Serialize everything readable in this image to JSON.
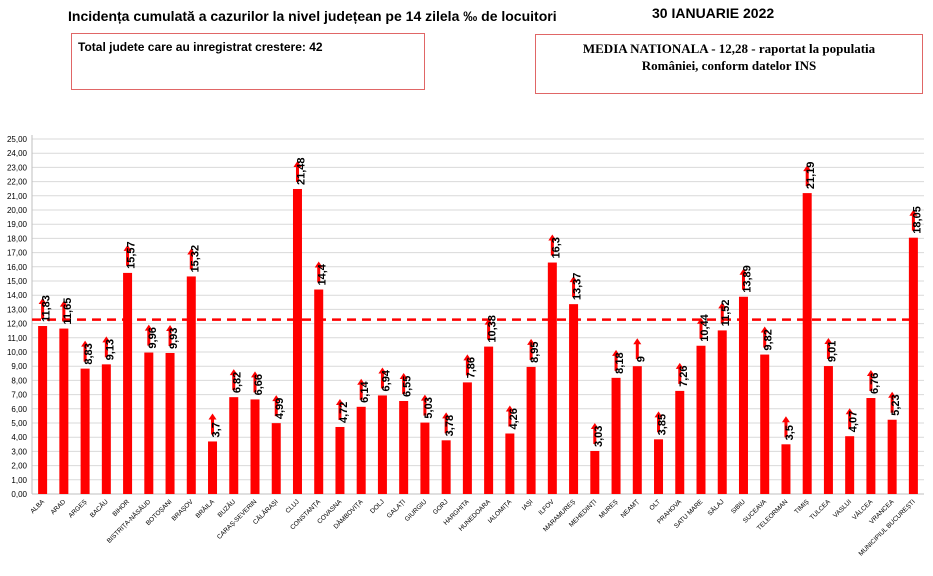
{
  "header": {
    "title": "Incidența cumulată a cazurilor la nivel județean pe 14 zilela ‰ de locuitori",
    "date": "30 IANUARIE 2022"
  },
  "boxes": {
    "left_text": "Total judete care au inregistrat crestere: 42",
    "right_line1": "MEDIA NATIONALA - 12,28 -  raportat la populatia",
    "right_line2": "României, conform datelor INS"
  },
  "colors": {
    "bars": "#ff0000",
    "arrows": "#ff0000",
    "reference": "#ff0000",
    "grid": "#d9d9d9"
  },
  "chart_data": {
    "type": "bar",
    "categories": [
      "ALBA",
      "ARAD",
      "ARGEȘ",
      "BACĂU",
      "BIHOR",
      "BISTRIȚA-NĂSĂUD",
      "BOTOȘANI",
      "BRAȘOV",
      "BRĂILA",
      "BUZĂU",
      "CARAȘ-SEVERIN",
      "CĂLĂRAȘI",
      "CLUJ",
      "CONSTANȚA",
      "COVASNA",
      "DÂMBOVIȚA",
      "DOLJ",
      "GALAȚI",
      "GIURGIU",
      "GORJ",
      "HARGHITA",
      "HUNEDOARA",
      "IALOMIȚA",
      "IAȘI",
      "ILFOV",
      "MARAMUREȘ",
      "MEHEDINȚI",
      "MUREȘ",
      "NEAMȚ",
      "OLT",
      "PRAHOVA",
      "SATU MARE",
      "SĂLAJ",
      "SIBIU",
      "SUCEAVA",
      "TELEORMAN",
      "TIMIȘ",
      "TULCEA",
      "VASLUI",
      "VÂLCEA",
      "VRANCEA",
      "MUNICIPIUL BUCUREȘTI"
    ],
    "values": [
      11.83,
      11.65,
      8.83,
      9.13,
      15.57,
      9.96,
      9.93,
      15.32,
      3.7,
      6.82,
      6.66,
      4.99,
      21.48,
      14.4,
      4.72,
      6.14,
      6.94,
      6.55,
      5.03,
      3.78,
      7.86,
      10.38,
      4.26,
      8.95,
      16.3,
      13.37,
      3.03,
      8.18,
      9,
      3.85,
      7.26,
      10.44,
      11.52,
      13.89,
      9.82,
      3.5,
      21.19,
      9.01,
      4.07,
      6.76,
      5.23,
      18.05
    ],
    "value_labels": [
      "11,83",
      "11,65",
      "8,83",
      "9,13",
      "15,57",
      "9,96",
      "9,93",
      "15,32",
      "3,7",
      "6,82",
      "6,66",
      "4,99",
      "21,48",
      "14,4",
      "4,72",
      "6,14",
      "6,94",
      "6,55",
      "5,03",
      "3,78",
      "7,86",
      "10,38",
      "4,26",
      "8,95",
      "16,3",
      "13,37",
      "3,03",
      "8,18",
      "9",
      "3,85",
      "7,26",
      "10,44",
      "11,52",
      "13,89",
      "9,82",
      "3,5",
      "21,19",
      "9,01",
      "4,07",
      "6,76",
      "5,23",
      "18,05"
    ],
    "reference_line": 12.28,
    "ylim": [
      0,
      25
    ],
    "ytick_labels": [
      "0,00",
      "1,00",
      "2,00",
      "3,00",
      "4,00",
      "5,00",
      "6,00",
      "7,00",
      "8,00",
      "9,00",
      "10,00",
      "11,00",
      "12,00",
      "13,00",
      "14,00",
      "15,00",
      "16,00",
      "17,00",
      "18,00",
      "19,00",
      "20,00",
      "21,00",
      "22,00",
      "23,00",
      "24,00",
      "25,00"
    ],
    "grid": true,
    "legend": "none"
  }
}
